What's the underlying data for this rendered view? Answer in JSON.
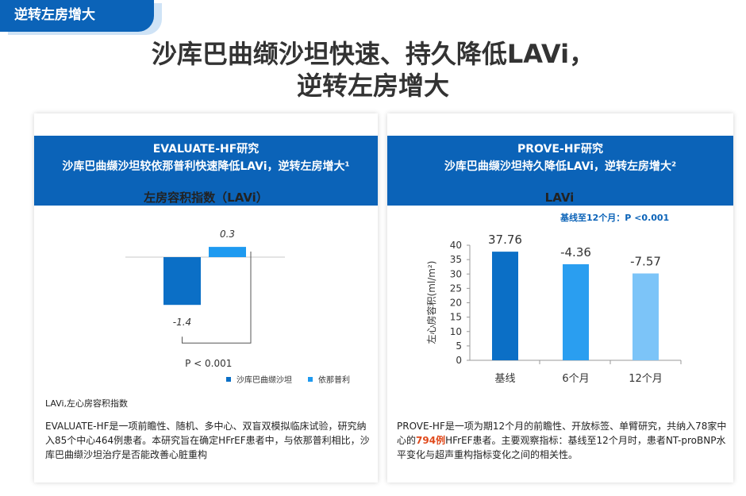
{
  "tag": "逆转左房增大",
  "headline": {
    "line1": "沙库巴曲缬沙坦快速、持久降低LAVi，",
    "line2": "逆转左房增大"
  },
  "left": {
    "header_line1": "EVALUATE-HF研究",
    "header_line2": "沙库巴曲缬沙坦较依那普利快速降低LAVi，逆转左房增大¹",
    "chart_title": "左房容积指数（LAVi）",
    "p_value": "P < 0.001",
    "footnote": "LAVi,左心房容积指数",
    "description": "EVALUATE-HF是一项前瞻性、随机、多中心、双盲双模拟临床试验，研究纳入85个中心464例患者。本研究旨在确定HFrEF患者中，与依那普利相比，沙库巴曲缬沙坦治疗是否能改善心脏重构"
  },
  "right": {
    "header_line1": "PROVE-HF研究",
    "header_line2": "沙库巴曲缬沙坦持久降低LAVi，逆转左房增大²",
    "chart_title": "LAVi",
    "subtitle": "基线至12个月：P <0.001",
    "desc_part1": "PROVE-HF是一项为期12个月的前瞻性、开放标签、单臂研究，共纳入78家中心的",
    "desc_highlight": "794例",
    "desc_part2": "HFrEF患者。主要观察指标：基线至12个月时，患者NT-proBNP水平变化与超声重构指标变化之间的相关性。"
  },
  "chart_data": [
    {
      "type": "bar",
      "title": "左房容积指数（LAVi）",
      "categories": [
        "沙库巴曲缬沙坦",
        "依那普利"
      ],
      "values": [
        -1.4,
        0.3
      ],
      "value_labels": [
        "-1.4",
        "0.3"
      ],
      "legend": [
        "沙库巴曲缬沙坦",
        "依那普利"
      ],
      "colors": [
        "#0b6fc6",
        "#1e9af0"
      ]
    },
    {
      "type": "bar",
      "title": "LAVi",
      "categories": [
        "基线",
        "6个月",
        "12个月"
      ],
      "values": [
        37.76,
        33.4,
        30.19
      ],
      "value_labels": [
        "37.76",
        "-4.36",
        "-7.57"
      ],
      "ylabel": "左心房容积(ml/m²)",
      "ylim": [
        0,
        40
      ],
      "yticks": [
        0,
        5,
        10,
        15,
        20,
        25,
        30,
        35,
        40
      ],
      "colors": [
        "#0b6fc6",
        "#2a9ef0",
        "#7cc4f8"
      ]
    }
  ]
}
